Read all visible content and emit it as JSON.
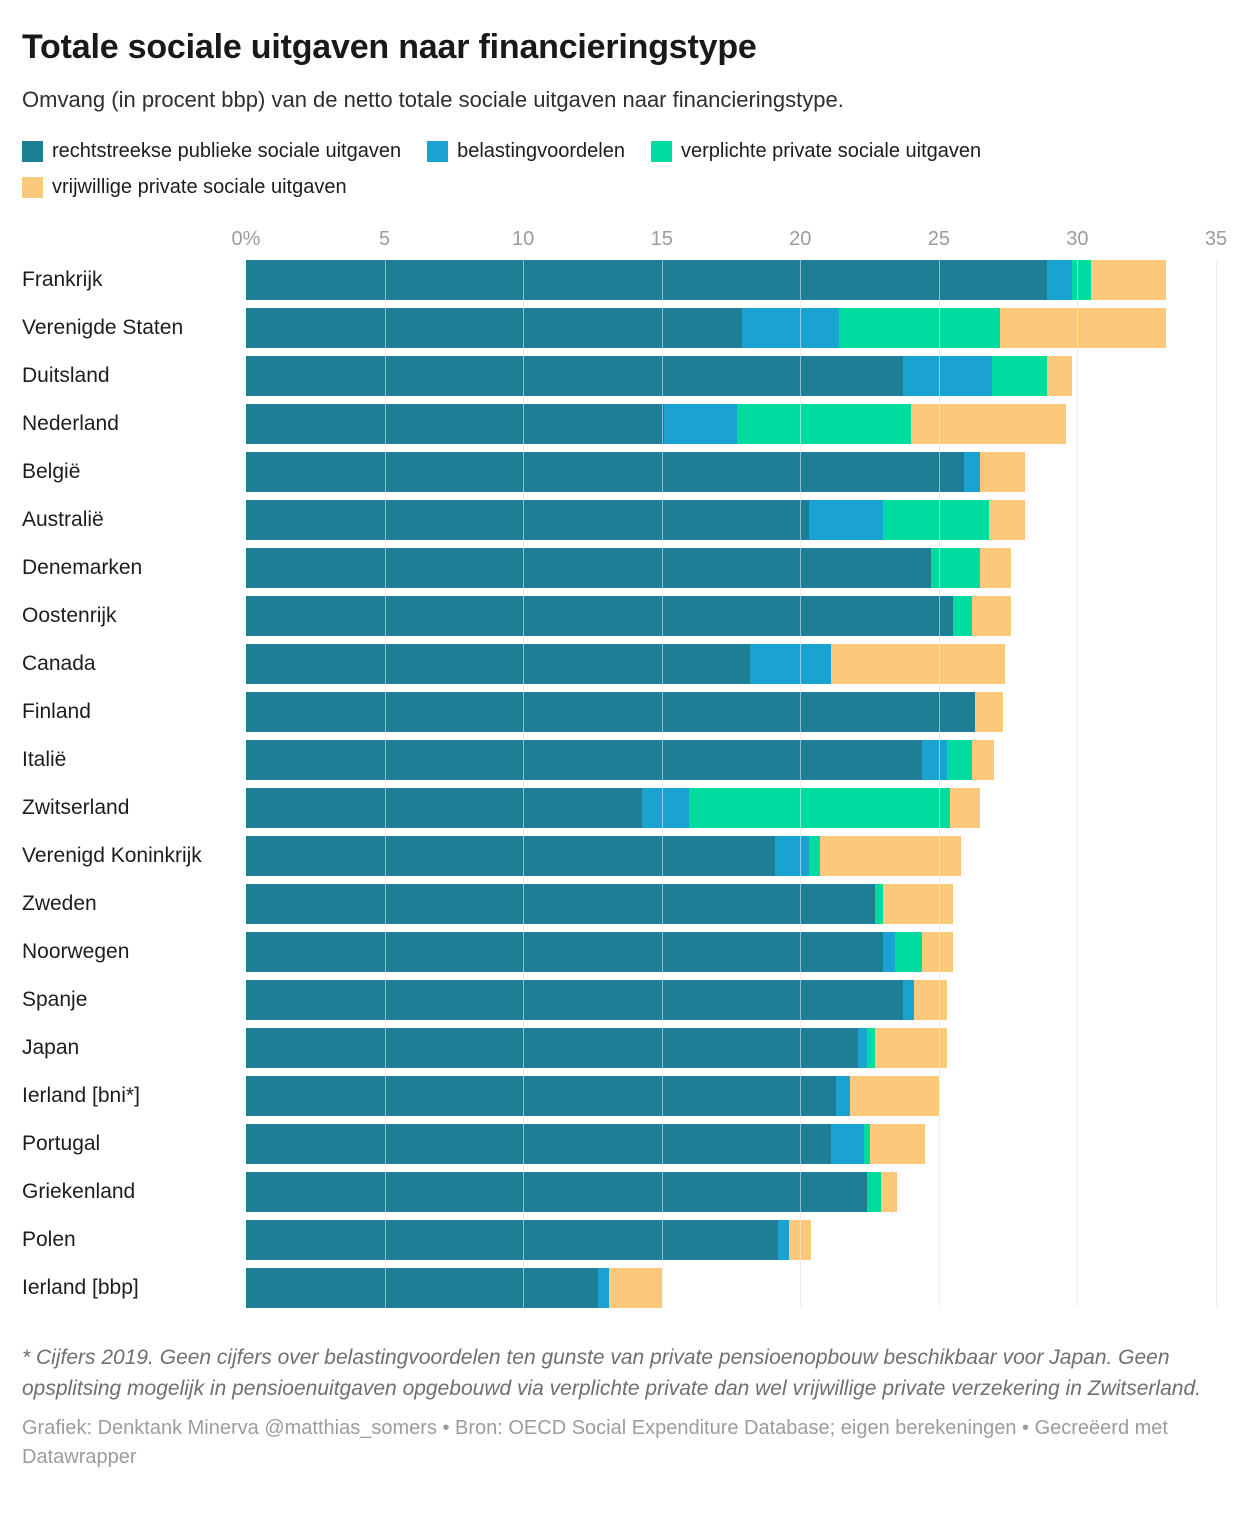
{
  "header": {
    "title": "Totale sociale uitgaven naar financieringstype",
    "subtitle": "Omvang (in procent bbp) van de netto totale sociale uitgaven naar financieringstype."
  },
  "legend": {
    "items": [
      {
        "label": "rechtstreekse publieke sociale uitgaven",
        "color": "#1d7e96"
      },
      {
        "label": "belastingvoordelen",
        "color": "#1aa3d1"
      },
      {
        "label": "verplichte private sociale uitgaven",
        "color": "#00dba0"
      },
      {
        "label": "vrijwillige private sociale uitgaven",
        "color": "#fcc87c"
      }
    ]
  },
  "chart_data": {
    "type": "bar",
    "stacked": true,
    "orientation": "horizontal",
    "unit": "% bbp",
    "x_axis": {
      "min": 0,
      "max": 35,
      "tick_values": [
        0,
        5,
        10,
        15,
        20,
        25,
        30,
        35
      ],
      "tick_labels": [
        "0%",
        "5",
        "10",
        "15",
        "20",
        "25",
        "30",
        "35"
      ],
      "grid": true
    },
    "legend_position": "top",
    "categories": [
      "Frankrijk",
      "Verenigde Staten",
      "Duitsland",
      "Nederland",
      "België",
      "Australië",
      "Denemarken",
      "Oostenrijk",
      "Canada",
      "Finland",
      "Italië",
      "Zwitserland",
      "Verenigd Koninkrijk",
      "Zweden",
      "Noorwegen",
      "Spanje",
      "Japan",
      "Ierland [bni*]",
      "Portugal",
      "Griekenland",
      "Polen",
      "Ierland [bbp]"
    ],
    "series": [
      {
        "name": "rechtstreekse publieke sociale uitgaven",
        "color": "#1d7e96",
        "values": [
          28.9,
          17.9,
          23.7,
          15.1,
          25.9,
          20.3,
          24.7,
          25.5,
          18.2,
          26.3,
          24.4,
          14.3,
          19.1,
          22.7,
          23.0,
          23.7,
          22.1,
          21.3,
          21.1,
          22.4,
          19.2,
          12.7
        ]
      },
      {
        "name": "belastingvoordelen",
        "color": "#1aa3d1",
        "values": [
          0.9,
          3.5,
          3.2,
          2.6,
          0.6,
          2.7,
          0,
          0,
          2.9,
          0,
          0.9,
          1.7,
          1.2,
          0,
          0.4,
          0.4,
          0.3,
          0.5,
          1.2,
          0,
          0.4,
          0.4
        ]
      },
      {
        "name": "verplichte private sociale uitgaven",
        "color": "#00dba0",
        "values": [
          0.7,
          5.8,
          2.0,
          6.3,
          0,
          3.8,
          1.8,
          0.7,
          0,
          0,
          0.9,
          9.4,
          0.4,
          0.3,
          1.0,
          0,
          0.3,
          0,
          0.2,
          0.5,
          0,
          0
        ]
      },
      {
        "name": "vrijwillige private sociale uitgaven",
        "color": "#fcc87c",
        "values": [
          2.7,
          6.0,
          0.9,
          5.6,
          1.6,
          1.3,
          1.1,
          1.4,
          6.3,
          1.0,
          0.8,
          1.1,
          5.1,
          2.5,
          1.1,
          1.2,
          2.6,
          3.2,
          2.0,
          0.6,
          0.8,
          1.9
        ]
      }
    ]
  },
  "footer": {
    "footnote": "* Cijfers 2019. Geen cijfers over belastingvoordelen ten gunste van private pensioenopbouw beschikbaar voor Japan. Geen opsplitsing mogelijk in pensioenuitgaven opgebouwd via verplichte private dan wel vrijwillige private verzekering in Zwitserland.",
    "credit": "Grafiek: Denktank Minerva @matthias_somers • Bron: OECD Social Expenditure Database; eigen berekeningen • Gecreëerd met Datawrapper"
  }
}
